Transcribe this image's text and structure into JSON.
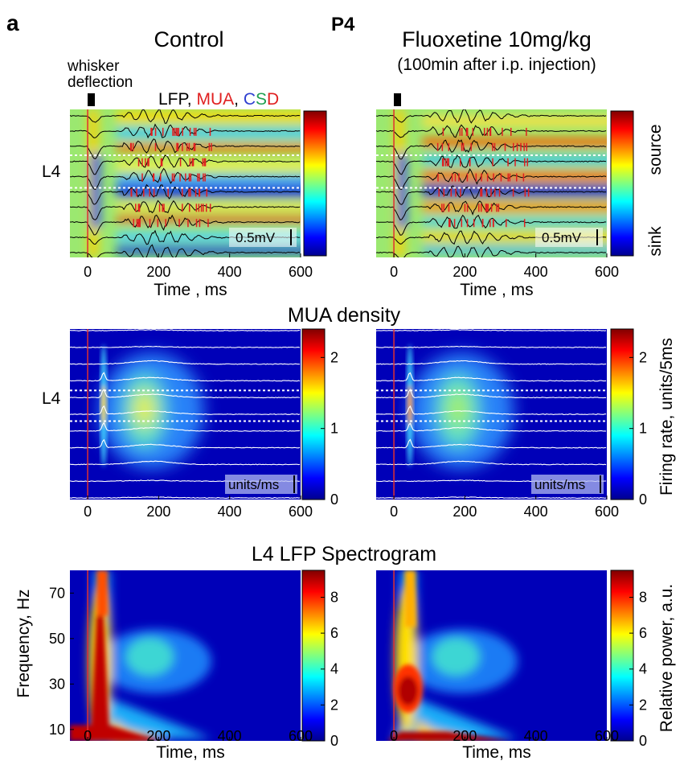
{
  "figure": {
    "panel_letter": "a",
    "age_label": "P4",
    "title_control": "Control",
    "title_treatment": "Fluoxetine 10mg/kg",
    "subtitle_treatment": "(100min after i.p. injection)",
    "stimulus_label_line1": "whisker",
    "stimulus_label_line2": "deflection",
    "legend_lfp": "LFP, ",
    "legend_mua": "MUA",
    "legend_sep": ", ",
    "legend_c": "C",
    "legend_s": "S",
    "legend_d": "D",
    "layer_label": "L4",
    "scale_lfp": "0.5mV",
    "scale_mua": "units/ms",
    "colorbar_csd_top": "source",
    "colorbar_csd_bottom": "sink",
    "mua_section_title": "MUA density",
    "mua_colorbar_label": "Firing rate, units/5ms",
    "spec_section_title": "L4 LFP Spectrogram",
    "spec_colorbar_label": "Relative power, a.u.",
    "spec_ylabel": "Frequency, Hz",
    "time_label_csd": "Time , ms",
    "time_label_spec": "Time, ms",
    "colors": {
      "mua_red": "#e02020",
      "csd_c": "#3040d0",
      "csd_s": "#20a050",
      "csd_d": "#e02020",
      "stimulus_line": "#e03030"
    }
  },
  "chart_data": [
    {
      "type": "heatmap",
      "panel": "csd-control",
      "title": "Control",
      "xlabel": "Time , ms",
      "xlim": [
        -50,
        600
      ],
      "x_ticks": [
        "0",
        "200",
        "400",
        "600"
      ],
      "x_tick_values": [
        0,
        200,
        400,
        600
      ],
      "colorbar_labels": [
        "source",
        "sink"
      ],
      "n_channels": 10,
      "stimulus_time": 0
    },
    {
      "type": "heatmap",
      "panel": "csd-fluoxetine",
      "title": "Fluoxetine 10mg/kg",
      "xlabel": "Time , ms",
      "xlim": [
        -50,
        600
      ],
      "x_ticks": [
        "0",
        "200",
        "400",
        "600"
      ],
      "x_tick_values": [
        0,
        200,
        400,
        600
      ],
      "colorbar_labels": [
        "source",
        "sink"
      ],
      "n_channels": 10,
      "stimulus_time": 0
    },
    {
      "type": "heatmap",
      "panel": "mua-control",
      "title": "MUA density",
      "xlim": [
        -50,
        600
      ],
      "x_ticks": [
        "0",
        "200",
        "400",
        "600"
      ],
      "x_tick_values": [
        0,
        200,
        400,
        600
      ],
      "colorbar_ticks": [
        "0",
        "1",
        "2"
      ],
      "colorbar_tick_values": [
        0,
        1,
        2
      ],
      "colorbar_range": [
        0,
        2.4
      ],
      "stimulus_time": 0
    },
    {
      "type": "heatmap",
      "panel": "mua-fluoxetine",
      "xlim": [
        -50,
        600
      ],
      "x_ticks": [
        "0",
        "200",
        "400",
        "600"
      ],
      "x_tick_values": [
        0,
        200,
        400,
        600
      ],
      "colorbar_ticks": [
        "0",
        "1",
        "2"
      ],
      "colorbar_tick_values": [
        0,
        1,
        2
      ],
      "colorbar_label": "Firing rate, units/5ms",
      "colorbar_range": [
        0,
        2.4
      ],
      "stimulus_time": 0
    },
    {
      "type": "heatmap",
      "panel": "spectrogram-control",
      "title": "L4 LFP Spectrogram",
      "xlabel": "Time, ms",
      "ylabel": "Frequency, Hz",
      "xlim": [
        -50,
        600
      ],
      "ylim": [
        5,
        80
      ],
      "x_ticks": [
        "0",
        "200",
        "400",
        "600"
      ],
      "x_tick_values": [
        0,
        200,
        400,
        600
      ],
      "y_ticks": [
        "10",
        "30",
        "50",
        "70"
      ],
      "y_tick_values": [
        10,
        30,
        50,
        70
      ],
      "colorbar_ticks": [
        "0",
        "2",
        "4",
        "6",
        "8"
      ],
      "colorbar_tick_values": [
        0,
        2,
        4,
        6,
        8
      ],
      "colorbar_range": [
        0,
        9.5
      ],
      "stimulus_time": 0
    },
    {
      "type": "heatmap",
      "panel": "spectrogram-fluoxetine",
      "xlabel": "Time, ms",
      "xlim": [
        -50,
        600
      ],
      "ylim": [
        5,
        80
      ],
      "x_ticks": [
        "0",
        "200",
        "400",
        "600"
      ],
      "x_tick_values": [
        0,
        200,
        400,
        600
      ],
      "y_tick_values": [
        10,
        30,
        50,
        70
      ],
      "colorbar_ticks": [
        "0",
        "2",
        "4",
        "6",
        "8"
      ],
      "colorbar_tick_values": [
        0,
        2,
        4,
        6,
        8
      ],
      "colorbar_label": "Relative power, a.u.",
      "colorbar_range": [
        0,
        9.5
      ],
      "stimulus_time": 0
    }
  ]
}
